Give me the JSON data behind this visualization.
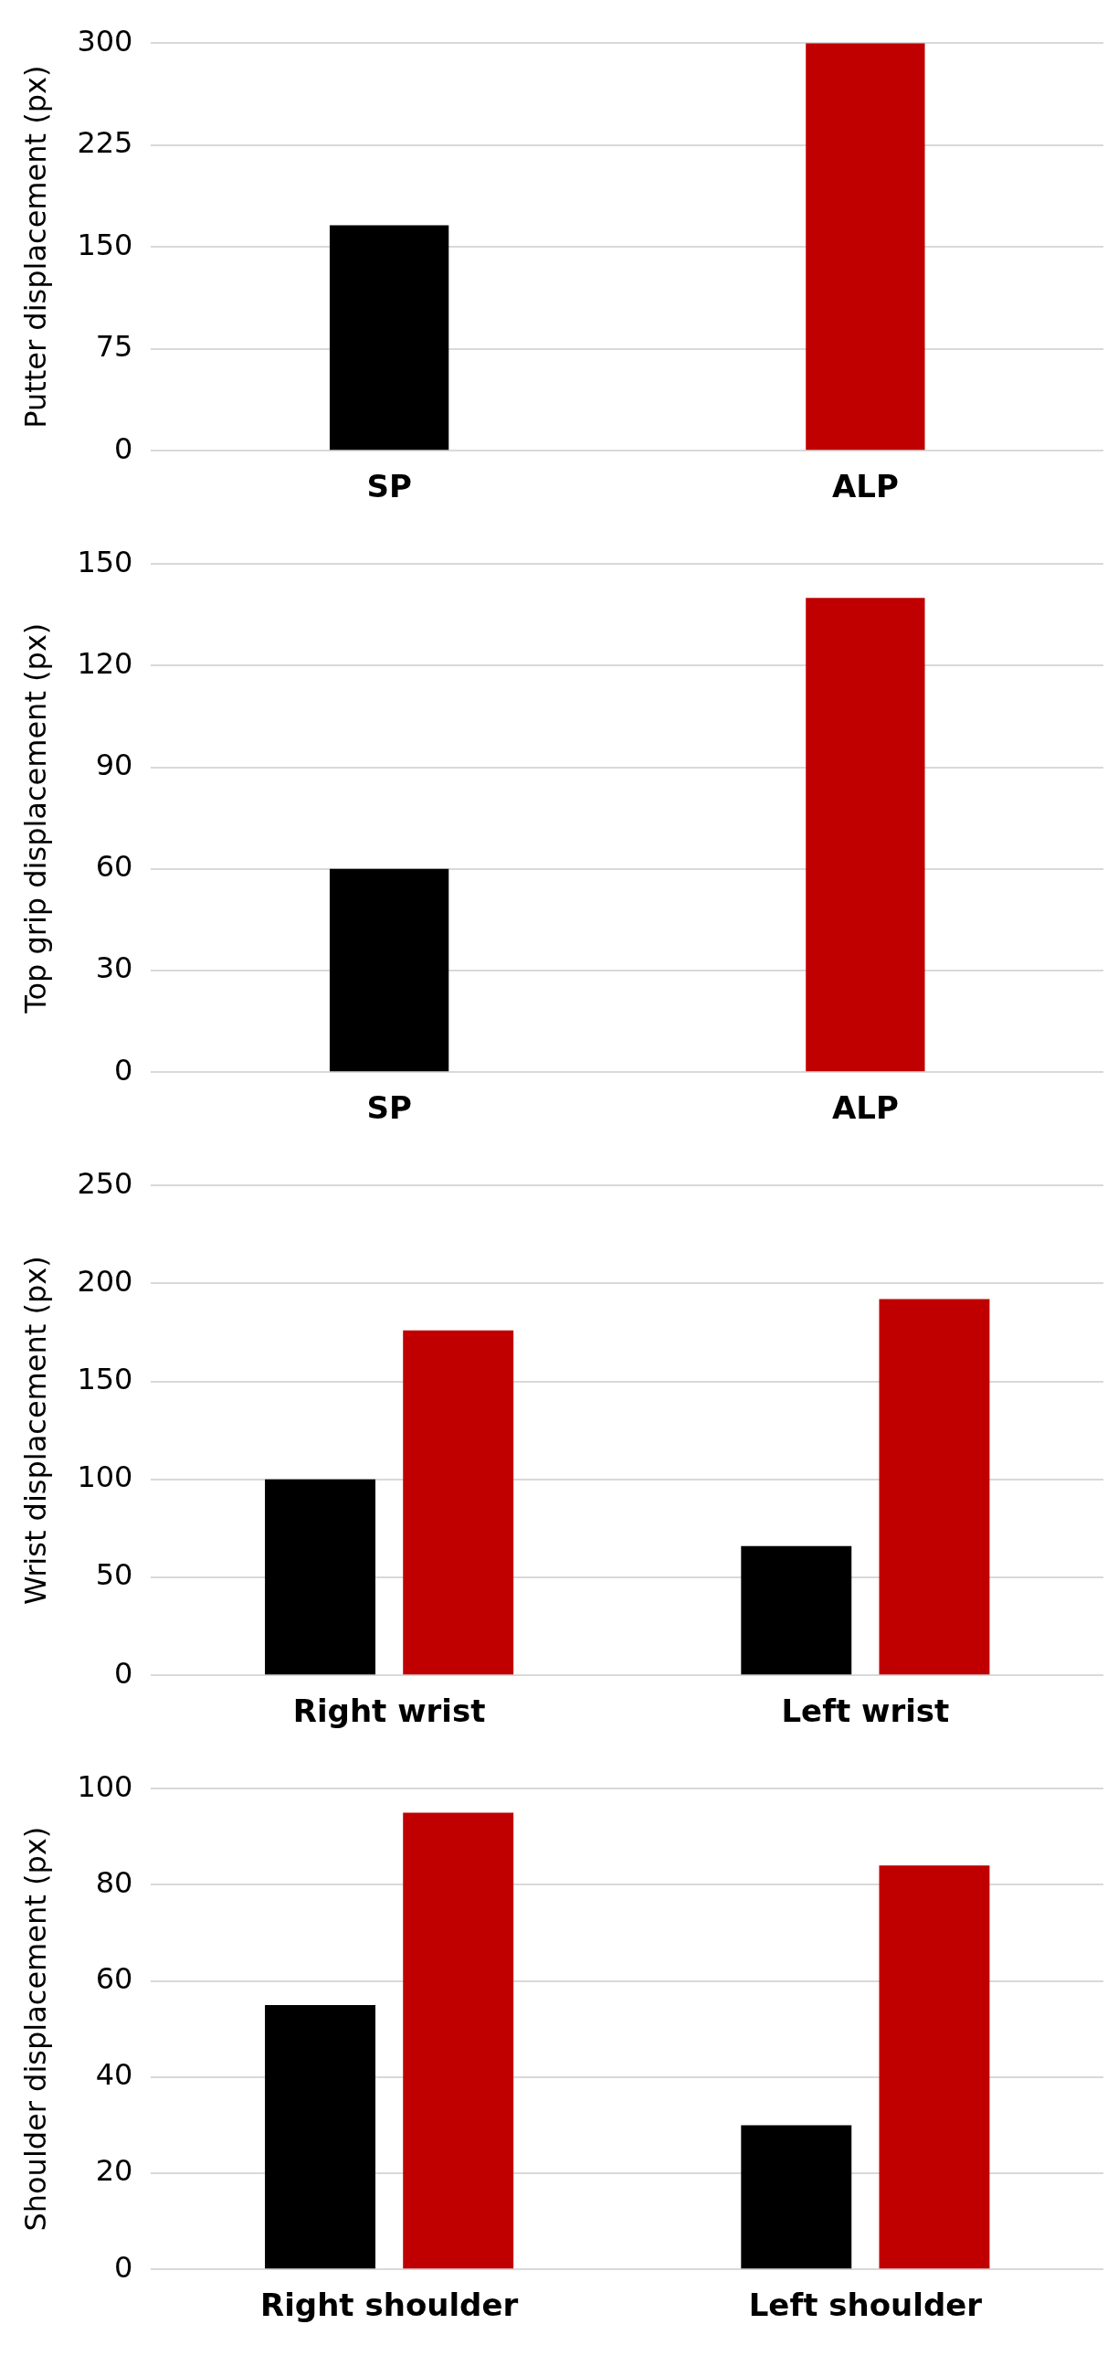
{
  "chart_data": [
    {
      "type": "bar",
      "ylabel": "Putter displacement (px)",
      "categories": [
        "SP",
        "ALP"
      ],
      "values": [
        166,
        300
      ],
      "colors": [
        "#000000",
        "#c00000"
      ],
      "ylim": [
        0,
        300
      ],
      "yticks": [
        0,
        75,
        150,
        225,
        300
      ],
      "grid": "y"
    },
    {
      "type": "bar",
      "ylabel": "Top grip displacement (px)",
      "categories": [
        "SP",
        "ALP"
      ],
      "values": [
        60,
        140
      ],
      "colors": [
        "#000000",
        "#c00000"
      ],
      "ylim": [
        0,
        150
      ],
      "yticks": [
        0,
        30,
        60,
        90,
        120,
        150
      ],
      "grid": "y"
    },
    {
      "type": "bar",
      "ylabel": "Wrist displacement (px)",
      "categories": [
        "Right wrist",
        "Left wrist"
      ],
      "series": [
        {
          "color": "#000000",
          "values": [
            100,
            66
          ]
        },
        {
          "color": "#c00000",
          "values": [
            176,
            192
          ]
        }
      ],
      "ylim": [
        0,
        250
      ],
      "yticks": [
        0,
        50,
        100,
        150,
        200,
        250
      ],
      "grid": "y"
    },
    {
      "type": "bar",
      "ylabel": "Shoulder displacement (px)",
      "categories": [
        "Right shoulder",
        "Left shoulder"
      ],
      "series": [
        {
          "color": "#000000",
          "values": [
            55,
            30
          ]
        },
        {
          "color": "#c00000",
          "values": [
            95,
            84
          ]
        }
      ],
      "ylim": [
        0,
        100
      ],
      "yticks": [
        0,
        20,
        40,
        60,
        80,
        100
      ],
      "grid": "y"
    }
  ]
}
